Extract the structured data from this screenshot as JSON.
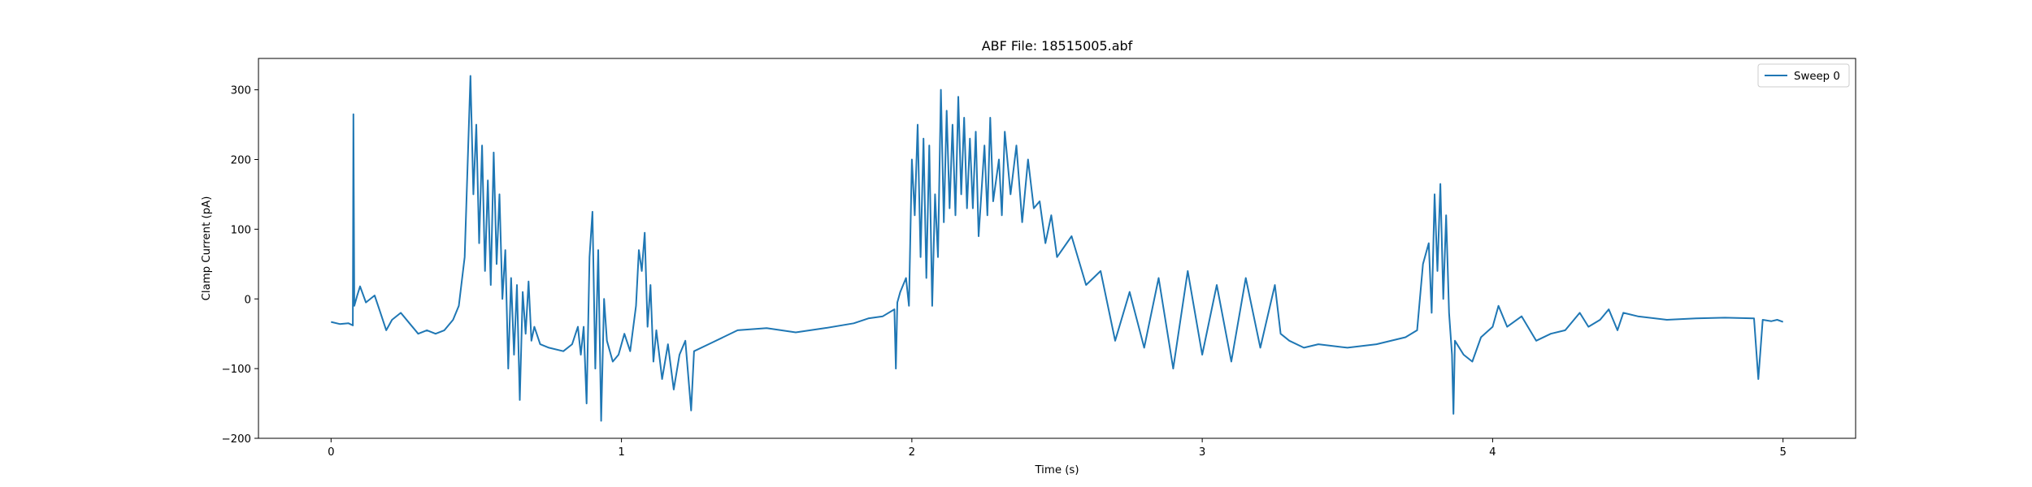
{
  "chart_data": {
    "type": "line",
    "title": "ABF File: 18515005.abf",
    "xlabel": "Time (s)",
    "ylabel": "Clamp Current (pA)",
    "xlim": [
      -0.25,
      5.25
    ],
    "ylim": [
      -200,
      345
    ],
    "xticks": [
      0,
      1,
      2,
      3,
      4,
      5
    ],
    "yticks": [
      -200,
      -100,
      0,
      100,
      200,
      300
    ],
    "grid": false,
    "legend": "top-right",
    "series": [
      {
        "name": "Sweep 0",
        "color": "#1f77b4",
        "points": [
          [
            0.0,
            -33
          ],
          [
            0.03,
            -36
          ],
          [
            0.06,
            -35
          ],
          [
            0.075,
            -38
          ],
          [
            0.077,
            265
          ],
          [
            0.08,
            -10
          ],
          [
            0.09,
            5
          ],
          [
            0.1,
            18
          ],
          [
            0.12,
            -5
          ],
          [
            0.15,
            5
          ],
          [
            0.17,
            -20
          ],
          [
            0.19,
            -45
          ],
          [
            0.21,
            -30
          ],
          [
            0.24,
            -20
          ],
          [
            0.27,
            -35
          ],
          [
            0.3,
            -50
          ],
          [
            0.33,
            -45
          ],
          [
            0.36,
            -50
          ],
          [
            0.39,
            -45
          ],
          [
            0.42,
            -30
          ],
          [
            0.44,
            -10
          ],
          [
            0.46,
            60
          ],
          [
            0.48,
            320
          ],
          [
            0.49,
            150
          ],
          [
            0.5,
            250
          ],
          [
            0.51,
            80
          ],
          [
            0.52,
            220
          ],
          [
            0.53,
            40
          ],
          [
            0.54,
            170
          ],
          [
            0.55,
            20
          ],
          [
            0.56,
            210
          ],
          [
            0.57,
            50
          ],
          [
            0.58,
            150
          ],
          [
            0.59,
            0
          ],
          [
            0.6,
            70
          ],
          [
            0.61,
            -100
          ],
          [
            0.62,
            30
          ],
          [
            0.63,
            -80
          ],
          [
            0.64,
            20
          ],
          [
            0.65,
            -145
          ],
          [
            0.66,
            10
          ],
          [
            0.67,
            -50
          ],
          [
            0.68,
            25
          ],
          [
            0.69,
            -60
          ],
          [
            0.7,
            -40
          ],
          [
            0.72,
            -65
          ],
          [
            0.75,
            -70
          ],
          [
            0.8,
            -75
          ],
          [
            0.83,
            -65
          ],
          [
            0.85,
            -40
          ],
          [
            0.86,
            -80
          ],
          [
            0.87,
            -40
          ],
          [
            0.88,
            -150
          ],
          [
            0.89,
            60
          ],
          [
            0.9,
            125
          ],
          [
            0.91,
            -100
          ],
          [
            0.92,
            70
          ],
          [
            0.93,
            -175
          ],
          [
            0.94,
            0
          ],
          [
            0.95,
            -60
          ],
          [
            0.97,
            -90
          ],
          [
            0.99,
            -80
          ],
          [
            1.01,
            -50
          ],
          [
            1.03,
            -75
          ],
          [
            1.05,
            -10
          ],
          [
            1.06,
            70
          ],
          [
            1.07,
            40
          ],
          [
            1.08,
            95
          ],
          [
            1.09,
            -40
          ],
          [
            1.1,
            20
          ],
          [
            1.11,
            -90
          ],
          [
            1.12,
            -45
          ],
          [
            1.14,
            -115
          ],
          [
            1.16,
            -65
          ],
          [
            1.18,
            -130
          ],
          [
            1.2,
            -80
          ],
          [
            1.22,
            -60
          ],
          [
            1.24,
            -160
          ],
          [
            1.25,
            -75
          ],
          [
            1.3,
            -65
          ],
          [
            1.4,
            -45
          ],
          [
            1.5,
            -42
          ],
          [
            1.6,
            -48
          ],
          [
            1.7,
            -42
          ],
          [
            1.8,
            -35
          ],
          [
            1.85,
            -28
          ],
          [
            1.9,
            -25
          ],
          [
            1.94,
            -15
          ],
          [
            1.945,
            -100
          ],
          [
            1.95,
            -5
          ],
          [
            1.96,
            10
          ],
          [
            1.98,
            30
          ],
          [
            1.99,
            -10
          ],
          [
            2.0,
            200
          ],
          [
            2.01,
            120
          ],
          [
            2.02,
            250
          ],
          [
            2.03,
            60
          ],
          [
            2.04,
            230
          ],
          [
            2.05,
            30
          ],
          [
            2.06,
            220
          ],
          [
            2.07,
            -10
          ],
          [
            2.08,
            150
          ],
          [
            2.09,
            60
          ],
          [
            2.1,
            300
          ],
          [
            2.11,
            110
          ],
          [
            2.12,
            270
          ],
          [
            2.13,
            130
          ],
          [
            2.14,
            250
          ],
          [
            2.15,
            120
          ],
          [
            2.16,
            290
          ],
          [
            2.17,
            150
          ],
          [
            2.18,
            260
          ],
          [
            2.19,
            130
          ],
          [
            2.2,
            230
          ],
          [
            2.21,
            130
          ],
          [
            2.22,
            240
          ],
          [
            2.23,
            90
          ],
          [
            2.25,
            220
          ],
          [
            2.26,
            120
          ],
          [
            2.27,
            260
          ],
          [
            2.28,
            140
          ],
          [
            2.3,
            200
          ],
          [
            2.31,
            120
          ],
          [
            2.32,
            240
          ],
          [
            2.34,
            150
          ],
          [
            2.36,
            220
          ],
          [
            2.38,
            110
          ],
          [
            2.4,
            200
          ],
          [
            2.42,
            130
          ],
          [
            2.44,
            140
          ],
          [
            2.46,
            80
          ],
          [
            2.48,
            120
          ],
          [
            2.5,
            60
          ],
          [
            2.55,
            90
          ],
          [
            2.6,
            20
          ],
          [
            2.65,
            40
          ],
          [
            2.7,
            -60
          ],
          [
            2.75,
            10
          ],
          [
            2.8,
            -70
          ],
          [
            2.85,
            30
          ],
          [
            2.9,
            -100
          ],
          [
            2.95,
            40
          ],
          [
            3.0,
            -80
          ],
          [
            3.05,
            20
          ],
          [
            3.1,
            -90
          ],
          [
            3.15,
            30
          ],
          [
            3.2,
            -70
          ],
          [
            3.25,
            20
          ],
          [
            3.27,
            -50
          ],
          [
            3.3,
            -60
          ],
          [
            3.35,
            -70
          ],
          [
            3.4,
            -65
          ],
          [
            3.5,
            -70
          ],
          [
            3.6,
            -65
          ],
          [
            3.7,
            -55
          ],
          [
            3.74,
            -45
          ],
          [
            3.76,
            50
          ],
          [
            3.78,
            80
          ],
          [
            3.79,
            -20
          ],
          [
            3.8,
            150
          ],
          [
            3.81,
            40
          ],
          [
            3.82,
            165
          ],
          [
            3.83,
            0
          ],
          [
            3.84,
            120
          ],
          [
            3.85,
            -20
          ],
          [
            3.86,
            -80
          ],
          [
            3.865,
            -165
          ],
          [
            3.87,
            -60
          ],
          [
            3.9,
            -80
          ],
          [
            3.93,
            -90
          ],
          [
            3.96,
            -55
          ],
          [
            4.0,
            -40
          ],
          [
            4.02,
            -10
          ],
          [
            4.05,
            -40
          ],
          [
            4.1,
            -25
          ],
          [
            4.15,
            -60
          ],
          [
            4.2,
            -50
          ],
          [
            4.25,
            -45
          ],
          [
            4.3,
            -20
          ],
          [
            4.33,
            -40
          ],
          [
            4.37,
            -30
          ],
          [
            4.4,
            -15
          ],
          [
            4.43,
            -45
          ],
          [
            4.45,
            -20
          ],
          [
            4.5,
            -25
          ],
          [
            4.6,
            -30
          ],
          [
            4.7,
            -28
          ],
          [
            4.8,
            -27
          ],
          [
            4.9,
            -28
          ],
          [
            4.915,
            -115
          ],
          [
            4.93,
            -30
          ],
          [
            4.96,
            -32
          ],
          [
            4.98,
            -30
          ],
          [
            5.0,
            -33
          ]
        ]
      }
    ]
  }
}
